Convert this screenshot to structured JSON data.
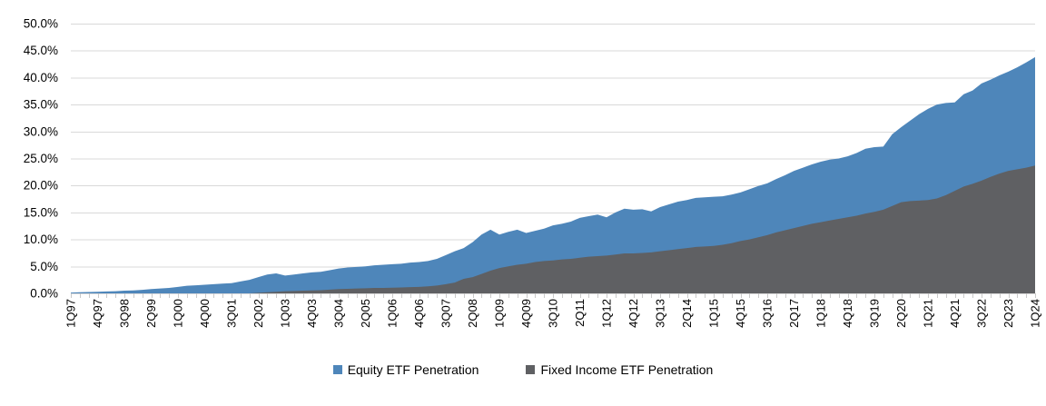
{
  "chart_data": {
    "type": "area",
    "mode": "overlay",
    "title": "",
    "xlabel": "",
    "ylabel": "",
    "ylim": [
      0,
      50
    ],
    "grid": "horizontal",
    "gridline_color": "#d9d9d9",
    "tick_color": "#c9c9c9",
    "text_color": "#000000",
    "legend_position": "bottom-center",
    "x_label_every": 3,
    "y_ticks": {
      "values": [
        0,
        5,
        10,
        15,
        20,
        25,
        30,
        35,
        40,
        45,
        50
      ],
      "labels": [
        "0.0%",
        "5.0%",
        "10.0%",
        "15.0%",
        "20.0%",
        "25.0%",
        "30.0%",
        "35.0%",
        "40.0%",
        "45.0%",
        "50.0%"
      ]
    },
    "categories": [
      "1Q97",
      "2Q97",
      "3Q97",
      "4Q97",
      "1Q98",
      "2Q98",
      "3Q98",
      "4Q98",
      "1Q99",
      "2Q99",
      "3Q99",
      "4Q99",
      "1Q00",
      "2Q00",
      "3Q00",
      "4Q00",
      "1Q01",
      "2Q01",
      "3Q01",
      "4Q01",
      "1Q02",
      "2Q02",
      "3Q02",
      "4Q02",
      "1Q03",
      "2Q03",
      "3Q03",
      "4Q03",
      "1Q04",
      "2Q04",
      "3Q04",
      "4Q04",
      "1Q05",
      "2Q05",
      "3Q05",
      "4Q05",
      "1Q06",
      "2Q06",
      "3Q06",
      "4Q06",
      "1Q07",
      "2Q07",
      "3Q07",
      "4Q07",
      "1Q08",
      "2Q08",
      "3Q08",
      "4Q08",
      "1Q09",
      "2Q09",
      "3Q09",
      "4Q09",
      "1Q10",
      "2Q10",
      "3Q10",
      "4Q10",
      "1Q11",
      "2Q11",
      "3Q11",
      "4Q11",
      "1Q12",
      "2Q12",
      "3Q12",
      "4Q12",
      "1Q13",
      "2Q13",
      "3Q13",
      "4Q13",
      "1Q14",
      "2Q14",
      "3Q14",
      "4Q14",
      "1Q15",
      "2Q15",
      "3Q15",
      "4Q15",
      "1Q16",
      "2Q16",
      "3Q16",
      "4Q16",
      "1Q17",
      "2Q17",
      "3Q17",
      "4Q17",
      "1Q18",
      "2Q18",
      "3Q18",
      "4Q18",
      "1Q19",
      "2Q19",
      "3Q19",
      "4Q19",
      "1Q20",
      "2Q20",
      "3Q20",
      "4Q20",
      "1Q21",
      "2Q21",
      "3Q21",
      "4Q21",
      "1Q22",
      "2Q22",
      "3Q22",
      "4Q22",
      "1Q23",
      "2Q23",
      "3Q23",
      "4Q23",
      "1Q24"
    ],
    "series": [
      {
        "name": "Equity ETF Penetration",
        "color": "#4e86ba",
        "values": [
          0.15,
          0.2,
          0.25,
          0.3,
          0.35,
          0.4,
          0.5,
          0.55,
          0.65,
          0.8,
          0.9,
          1.0,
          1.2,
          1.4,
          1.5,
          1.6,
          1.7,
          1.8,
          1.9,
          2.2,
          2.5,
          3.0,
          3.5,
          3.7,
          3.3,
          3.5,
          3.7,
          3.9,
          4.0,
          4.3,
          4.6,
          4.8,
          4.9,
          5.0,
          5.2,
          5.3,
          5.4,
          5.5,
          5.7,
          5.8,
          6.0,
          6.4,
          7.1,
          7.8,
          8.4,
          9.5,
          10.9,
          11.8,
          10.9,
          11.4,
          11.8,
          11.2,
          11.6,
          12.0,
          12.6,
          12.9,
          13.3,
          14.0,
          14.3,
          14.6,
          14.1,
          15.0,
          15.7,
          15.5,
          15.6,
          15.2,
          16.0,
          16.5,
          17.0,
          17.3,
          17.7,
          17.8,
          17.9,
          18.0,
          18.3,
          18.7,
          19.3,
          19.9,
          20.4,
          21.2,
          21.9,
          22.7,
          23.3,
          23.9,
          24.4,
          24.8,
          25.0,
          25.4,
          26.0,
          26.8,
          27.1,
          27.2,
          29.5,
          30.8,
          32.0,
          33.2,
          34.2,
          35.0,
          35.3,
          35.4,
          36.9,
          37.6,
          38.9,
          39.6,
          40.4,
          41.1,
          41.9,
          42.8,
          43.8
        ]
      },
      {
        "name": "Fixed Income ETF Penetration",
        "color": "#5f6063",
        "values": [
          0,
          0,
          0,
          0,
          0,
          0,
          0,
          0,
          0,
          0,
          0,
          0,
          0,
          0,
          0,
          0,
          0,
          0,
          0,
          0,
          0,
          0.1,
          0.2,
          0.3,
          0.4,
          0.45,
          0.5,
          0.55,
          0.6,
          0.7,
          0.8,
          0.85,
          0.9,
          0.95,
          1.0,
          1.0,
          1.05,
          1.1,
          1.15,
          1.2,
          1.3,
          1.45,
          1.7,
          2.0,
          2.7,
          3.0,
          3.6,
          4.2,
          4.7,
          5.0,
          5.3,
          5.5,
          5.8,
          6.0,
          6.1,
          6.3,
          6.4,
          6.6,
          6.8,
          6.9,
          7.0,
          7.2,
          7.4,
          7.4,
          7.5,
          7.6,
          7.8,
          8.0,
          8.2,
          8.4,
          8.6,
          8.7,
          8.8,
          9.0,
          9.3,
          9.7,
          10.0,
          10.4,
          10.8,
          11.3,
          11.7,
          12.1,
          12.5,
          12.9,
          13.2,
          13.5,
          13.8,
          14.1,
          14.4,
          14.8,
          15.1,
          15.5,
          16.2,
          16.9,
          17.1,
          17.2,
          17.3,
          17.6,
          18.2,
          19.0,
          19.8,
          20.3,
          20.9,
          21.6,
          22.2,
          22.7,
          23.0,
          23.3,
          23.7
        ]
      }
    ]
  },
  "legend": {
    "equity_label": "Equity ETF Penetration",
    "fixed_income_label": "Fixed Income ETF Penetration"
  }
}
